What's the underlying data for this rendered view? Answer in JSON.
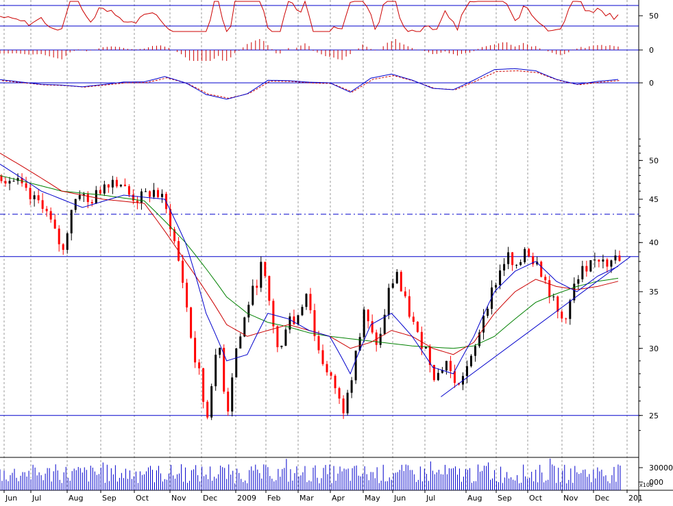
{
  "chart_data": {
    "type": "stock-chart-with-indicators",
    "months": [
      "Jun",
      "Jul",
      "Aug",
      "Sep",
      "Oct",
      "Nov",
      "Dec",
      "2009",
      "Feb",
      "Mar",
      "Apr",
      "May",
      "Jun",
      "Jul",
      "Aug",
      "Sep",
      "Oct",
      "Nov",
      "Dec",
      "201"
    ],
    "price_axis": {
      "scale": "log",
      "ylim": [
        23.5,
        53.5
      ],
      "ticks": [
        25,
        30,
        35,
        40,
        45,
        50
      ]
    },
    "price_series": {
      "close_approx": [
        [
          0,
          48
        ],
        [
          4,
          47
        ],
        [
          7,
          45
        ],
        [
          10,
          44.5
        ],
        [
          13,
          41
        ],
        [
          15,
          39
        ],
        [
          17,
          44
        ],
        [
          19,
          46
        ],
        [
          21,
          44.5
        ],
        [
          23,
          45.5
        ],
        [
          25,
          47
        ],
        [
          27,
          47.5
        ],
        [
          29,
          47
        ],
        [
          31,
          45.5
        ],
        [
          33,
          45
        ],
        [
          35,
          45.5
        ],
        [
          37,
          46
        ],
        [
          39,
          45
        ],
        [
          41,
          42
        ],
        [
          43,
          38
        ],
        [
          44,
          36
        ],
        [
          46,
          31
        ],
        [
          47,
          29
        ],
        [
          48,
          28
        ],
        [
          49,
          26
        ],
        [
          50,
          25
        ],
        [
          51,
          27.5
        ],
        [
          52,
          29
        ],
        [
          53,
          30
        ],
        [
          54,
          27
        ],
        [
          55,
          25.5
        ],
        [
          56,
          28
        ],
        [
          57,
          30
        ],
        [
          58,
          31
        ],
        [
          59,
          32.5
        ],
        [
          60,
          34
        ],
        [
          61,
          35
        ],
        [
          62,
          36
        ],
        [
          63,
          37.5
        ],
        [
          64,
          36
        ],
        [
          65,
          34
        ],
        [
          66,
          32
        ],
        [
          67,
          30
        ],
        [
          68,
          30
        ],
        [
          69,
          32
        ],
        [
          70,
          33
        ],
        [
          71,
          32
        ],
        [
          72,
          33
        ],
        [
          73,
          34
        ],
        [
          74,
          35
        ],
        [
          75,
          33.5
        ],
        [
          76,
          31
        ],
        [
          77,
          30
        ],
        [
          78,
          29
        ],
        [
          79,
          28
        ],
        [
          80,
          27.5
        ],
        [
          81,
          27
        ],
        [
          82,
          26
        ],
        [
          83,
          25.5
        ],
        [
          84,
          27
        ],
        [
          85,
          28
        ],
        [
          86,
          30
        ],
        [
          87,
          31
        ],
        [
          88,
          33
        ],
        [
          89,
          32
        ],
        [
          90,
          31
        ],
        [
          91,
          30.5
        ],
        [
          92,
          31
        ],
        [
          93,
          33
        ],
        [
          94,
          35
        ],
        [
          95,
          36
        ],
        [
          96,
          37
        ],
        [
          97,
          35
        ],
        [
          98,
          34
        ],
        [
          99,
          33
        ],
        [
          100,
          32
        ],
        [
          101,
          31
        ],
        [
          102,
          30.5
        ],
        [
          103,
          30
        ],
        [
          104,
          29
        ],
        [
          105,
          28
        ],
        [
          106,
          28
        ],
        [
          107,
          28.5
        ],
        [
          108,
          29
        ],
        [
          109,
          28
        ],
        [
          110,
          27.5
        ],
        [
          111,
          27
        ],
        [
          112,
          28
        ],
        [
          113,
          28.5
        ],
        [
          114,
          29
        ],
        [
          115,
          30
        ],
        [
          116,
          31.5
        ],
        [
          117,
          33
        ],
        [
          118,
          34
        ],
        [
          119,
          35
        ],
        [
          120,
          36
        ],
        [
          121,
          37
        ],
        [
          122,
          38
        ],
        [
          123,
          38.5
        ],
        [
          124,
          37.5
        ],
        [
          125,
          37
        ],
        [
          126,
          38
        ],
        [
          127,
          39.5
        ],
        [
          128,
          39
        ],
        [
          129,
          38
        ],
        [
          130,
          38.5
        ],
        [
          131,
          37
        ],
        [
          132,
          36
        ],
        [
          133,
          35
        ],
        [
          134,
          34
        ],
        [
          135,
          33
        ],
        [
          136,
          32.5
        ],
        [
          137,
          33
        ],
        [
          138,
          34
        ],
        [
          139,
          35.5
        ],
        [
          140,
          36
        ],
        [
          141,
          37
        ],
        [
          142,
          36.5
        ],
        [
          143,
          37.5
        ],
        [
          144,
          38
        ],
        [
          145,
          38.3
        ],
        [
          146,
          38.5
        ],
        [
          147,
          38
        ],
        [
          148,
          38.6
        ],
        [
          149,
          38.2
        ],
        [
          150,
          38
        ]
      ],
      "ma_blue_approx": [
        [
          0,
          49.5
        ],
        [
          10,
          46
        ],
        [
          20,
          44
        ],
        [
          30,
          45.5
        ],
        [
          40,
          45
        ],
        [
          45,
          40
        ],
        [
          50,
          33
        ],
        [
          55,
          29
        ],
        [
          60,
          29.5
        ],
        [
          65,
          33
        ],
        [
          70,
          32.5
        ],
        [
          75,
          31.5
        ],
        [
          80,
          31
        ],
        [
          85,
          28
        ],
        [
          90,
          32
        ],
        [
          95,
          33
        ],
        [
          100,
          31
        ],
        [
          105,
          28.5
        ],
        [
          110,
          28
        ],
        [
          115,
          31
        ],
        [
          120,
          35
        ],
        [
          125,
          37
        ],
        [
          130,
          38
        ],
        [
          135,
          36
        ],
        [
          140,
          35
        ],
        [
          145,
          36.5
        ],
        [
          150,
          37.5
        ]
      ],
      "ma_red_approx": [
        [
          0,
          51
        ],
        [
          15,
          46
        ],
        [
          25,
          45
        ],
        [
          35,
          44.5
        ],
        [
          45,
          38
        ],
        [
          55,
          32
        ],
        [
          60,
          31
        ],
        [
          65,
          31.5
        ],
        [
          70,
          32
        ],
        [
          75,
          31.5
        ],
        [
          80,
          31
        ],
        [
          85,
          30
        ],
        [
          90,
          30.5
        ],
        [
          95,
          31.5
        ],
        [
          100,
          31
        ],
        [
          105,
          30
        ],
        [
          110,
          29.5
        ],
        [
          115,
          30.5
        ],
        [
          120,
          33
        ],
        [
          125,
          35
        ],
        [
          130,
          36.2
        ],
        [
          135,
          35.5
        ],
        [
          140,
          35.2
        ],
        [
          145,
          35.5
        ],
        [
          150,
          36
        ]
      ],
      "ma_green_approx": [
        [
          0,
          48
        ],
        [
          15,
          46
        ],
        [
          25,
          45.5
        ],
        [
          35,
          44.8
        ],
        [
          45,
          40
        ],
        [
          55,
          34.5
        ],
        [
          60,
          33
        ],
        [
          65,
          32.2
        ],
        [
          70,
          31.8
        ],
        [
          75,
          31.3
        ],
        [
          80,
          31
        ],
        [
          85,
          30.8
        ],
        [
          90,
          30.6
        ],
        [
          95,
          30.4
        ],
        [
          100,
          30.2
        ],
        [
          105,
          30.1
        ],
        [
          110,
          30
        ],
        [
          115,
          30.2
        ],
        [
          120,
          31
        ],
        [
          125,
          32.5
        ],
        [
          130,
          34
        ],
        [
          135,
          34.8
        ],
        [
          140,
          35.5
        ],
        [
          145,
          36
        ],
        [
          150,
          36.3
        ]
      ]
    },
    "horizontal_lines": [
      {
        "price": 43.2,
        "style": "dash-dot",
        "color": "#0000cc"
      },
      {
        "price": 38.5,
        "style": "solid",
        "color": "#0000cc"
      },
      {
        "price": 25,
        "style": "solid",
        "color": "#0000cc"
      }
    ],
    "trendline": {
      "from": [
        107,
        26.3
      ],
      "to": [
        153,
        38.5
      ],
      "color": "#0000cc"
    },
    "indicator_panels": [
      {
        "id": "rsi",
        "label": "50",
        "color": "#cc0000"
      },
      {
        "id": "macd-histogram",
        "label": "0",
        "color": "#cc0000"
      },
      {
        "id": "macd",
        "label": "0",
        "color": "#0000cc"
      }
    ],
    "volume_panel": {
      "labels": [
        "30000",
        "000"
      ],
      "multiplier_label": "x100",
      "color": "#0000cc"
    },
    "grid": "vertical dashed monthly",
    "colors": {
      "up_candle": "#000000",
      "down_candle": "#ff0000",
      "blue": "#0000cc",
      "red": "#cc0000",
      "green": "#008000"
    }
  }
}
